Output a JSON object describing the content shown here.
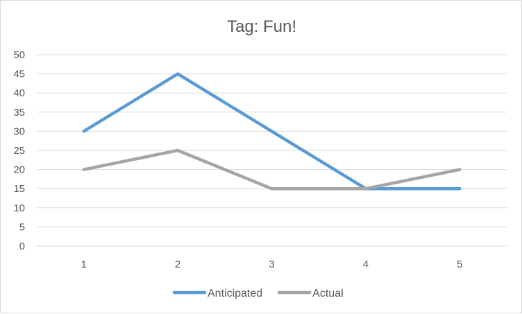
{
  "chart_data": {
    "type": "line",
    "title": "Tag: Fun!",
    "xlabel": "",
    "ylabel": "",
    "categories": [
      "1",
      "2",
      "3",
      "4",
      "5"
    ],
    "ylim": [
      0,
      50
    ],
    "yticks": [
      0,
      5,
      10,
      15,
      20,
      25,
      30,
      35,
      40,
      45,
      50
    ],
    "grid": true,
    "legend_position": "bottom",
    "series": [
      {
        "name": "Anticipated",
        "values": [
          30,
          45,
          30,
          15,
          15
        ],
        "color": "#5b9bd5"
      },
      {
        "name": "Actual",
        "values": [
          20,
          25,
          15,
          15,
          20
        ],
        "color": "#a5a5a5"
      }
    ]
  }
}
